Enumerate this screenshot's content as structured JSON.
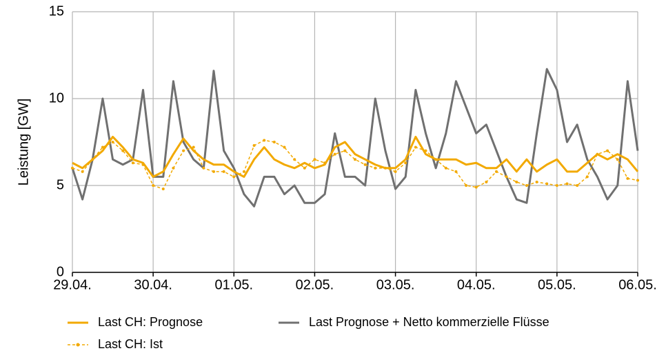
{
  "chart_data": {
    "type": "line",
    "y_label": "Leistung [GW]",
    "x": [
      0,
      0.125,
      0.25,
      0.375,
      0.5,
      0.625,
      0.75,
      0.875,
      1,
      1.125,
      1.25,
      1.375,
      1.5,
      1.625,
      1.75,
      1.875,
      2,
      2.125,
      2.25,
      2.375,
      2.5,
      2.625,
      2.75,
      2.875,
      3,
      3.125,
      3.25,
      3.375,
      3.5,
      3.625,
      3.75,
      3.875,
      4,
      4.125,
      4.25,
      4.375,
      4.5,
      4.625,
      4.75,
      4.875,
      5,
      5.125,
      5.25,
      5.375,
      5.5,
      5.625,
      5.75,
      5.875,
      6,
      6.125,
      6.25,
      6.375,
      6.5,
      6.625,
      6.75,
      6.875,
      7
    ],
    "series": [
      {
        "name": "Last CH: Prognose",
        "color": "#f2a900",
        "style": "solid",
        "values": [
          6.3,
          6.0,
          6.5,
          7.0,
          7.8,
          7.2,
          6.5,
          6.3,
          5.5,
          5.8,
          6.8,
          7.7,
          7.0,
          6.5,
          6.2,
          6.2,
          5.8,
          5.5,
          6.5,
          7.2,
          6.5,
          6.2,
          6.0,
          6.3,
          6.0,
          6.2,
          7.2,
          7.5,
          6.8,
          6.5,
          6.2,
          6.0,
          6.0,
          6.5,
          7.8,
          6.8,
          6.5,
          6.5,
          6.5,
          6.2,
          6.3,
          6.0,
          6.0,
          6.5,
          5.8,
          6.5,
          5.8,
          6.2,
          6.5,
          5.8,
          5.8,
          6.3,
          6.8,
          6.5,
          6.8,
          6.5,
          5.8
        ]
      },
      {
        "name": "Last Prognose + Netto kommerzielle Flüsse",
        "color": "#707070",
        "style": "solid",
        "values": [
          6.0,
          4.2,
          6.5,
          10.0,
          6.5,
          6.2,
          6.5,
          10.5,
          5.5,
          5.5,
          11.0,
          7.5,
          6.5,
          6.0,
          11.6,
          7.0,
          6.0,
          4.5,
          3.8,
          5.5,
          5.5,
          4.5,
          5.0,
          4.0,
          4.0,
          4.5,
          8.0,
          5.5,
          5.5,
          5.0,
          10.0,
          7.0,
          4.8,
          5.5,
          10.5,
          8.0,
          6.0,
          8.0,
          11.0,
          9.5,
          8.0,
          8.5,
          7.0,
          5.5,
          4.2,
          4.0,
          8.0,
          11.7,
          10.5,
          7.5,
          8.5,
          6.5,
          5.5,
          4.2,
          5.0,
          11.0,
          7.0
        ]
      },
      {
        "name": "Last CH: Ist",
        "color": "#f2a900",
        "style": "dashed",
        "values": [
          6.0,
          5.8,
          6.5,
          7.2,
          7.5,
          7.0,
          6.3,
          6.2,
          5.0,
          4.8,
          6.0,
          7.0,
          7.2,
          6.0,
          5.8,
          5.8,
          5.5,
          5.8,
          7.3,
          7.6,
          7.5,
          7.2,
          6.5,
          6.0,
          6.5,
          6.3,
          6.8,
          7.0,
          6.5,
          6.2,
          6.0,
          6.0,
          5.8,
          6.3,
          7.2,
          7.0,
          6.5,
          6.0,
          5.8,
          5.0,
          4.9,
          5.2,
          5.8,
          5.5,
          5.2,
          5.0,
          5.2,
          5.1,
          5.0,
          5.1,
          5.0,
          5.5,
          6.8,
          7.0,
          6.5,
          5.4,
          5.3
        ]
      }
    ],
    "xlim": [
      0,
      7
    ],
    "xticks": [
      {
        "value": 0,
        "label": "29.04."
      },
      {
        "value": 1,
        "label": "30.04."
      },
      {
        "value": 2,
        "label": "01.05."
      },
      {
        "value": 3,
        "label": "02.05."
      },
      {
        "value": 4,
        "label": "03.05."
      },
      {
        "value": 5,
        "label": "04.05."
      },
      {
        "value": 6,
        "label": "05.05."
      },
      {
        "value": 7,
        "label": "06.05."
      }
    ],
    "ylim": [
      0,
      15
    ],
    "yticks": [
      0,
      5,
      10,
      15
    ],
    "grid": true
  }
}
